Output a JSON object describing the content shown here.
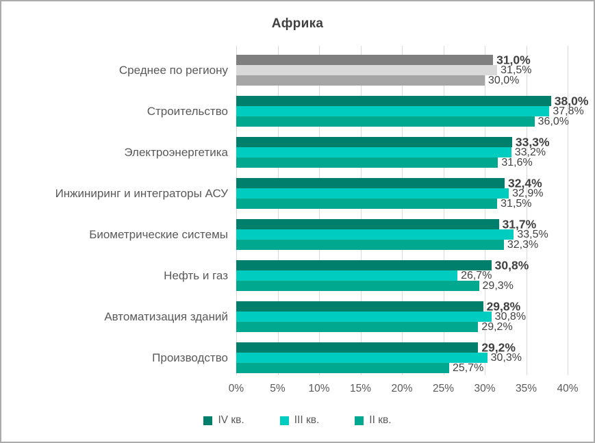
{
  "title": "Африка",
  "chart_data": {
    "type": "bar",
    "orientation": "horizontal",
    "title": "Африка",
    "xlabel": "",
    "ylabel": "",
    "xlim": [
      0,
      40
    ],
    "x_tick_step": 5,
    "x_ticks": [
      "0%",
      "5%",
      "10%",
      "15%",
      "20%",
      "25%",
      "30%",
      "35%",
      "40%"
    ],
    "grid": "vertical",
    "legend_position": "bottom",
    "decimal_separator": ",",
    "categories": [
      "Среднее по региону",
      "Строительство",
      "Электроэнергетика",
      "Инжиниринг и интеграторы АСУ",
      "Биометрические системы",
      "Нефть и газ",
      "Автоматизация зданий",
      "Производство"
    ],
    "average_category_index": 0,
    "series": [
      {
        "name": "IV кв.",
        "color": "#00806C",
        "average_color": "#7F7F7F",
        "bold_labels": true,
        "values": [
          31.0,
          38.0,
          33.3,
          32.4,
          31.7,
          30.8,
          29.8,
          29.2
        ]
      },
      {
        "name": "III кв.",
        "color": "#00CCC0",
        "average_color": "#D9D9D9",
        "bold_labels": false,
        "values": [
          31.5,
          37.8,
          33.2,
          32.9,
          33.5,
          26.7,
          30.8,
          30.3
        ]
      },
      {
        "name": "II кв.",
        "color": "#00A88F",
        "average_color": "#A6A6A6",
        "bold_labels": false,
        "values": [
          30.0,
          36.0,
          31.6,
          31.5,
          32.3,
          29.3,
          29.2,
          25.7
        ]
      }
    ]
  },
  "colors": {
    "background": "#FFFFFF",
    "border": "#ABABAB",
    "gridline": "#D9D9D9",
    "title_text": "#404040",
    "value_text": "#404040",
    "category_text": "#595959",
    "axis_text": "#595959"
  }
}
